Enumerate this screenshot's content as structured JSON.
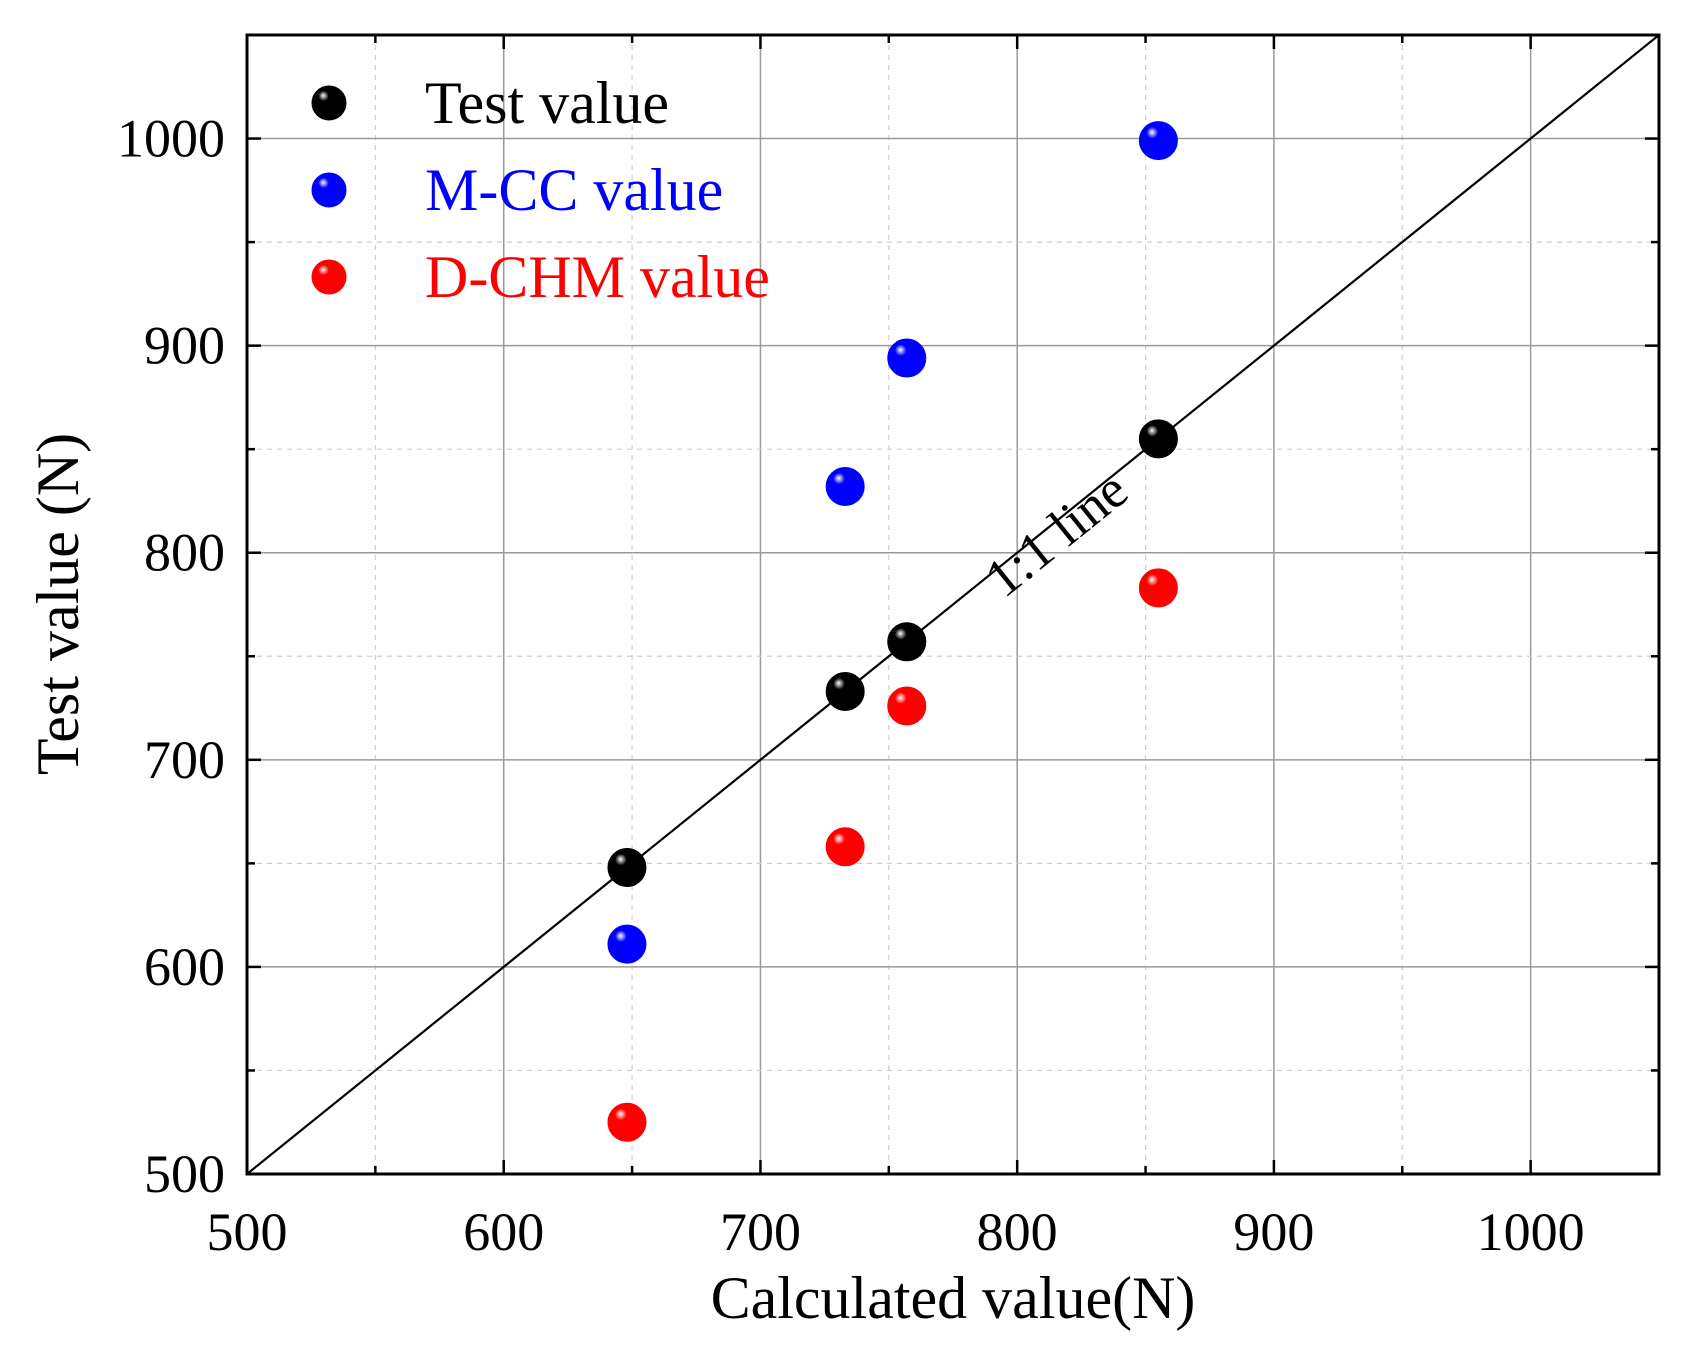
{
  "chart_data": {
    "type": "scatter",
    "xlabel": "Calculated value(N)",
    "ylabel": "Test value (N)",
    "xlim": [
      500,
      1050
    ],
    "ylim": [
      500,
      1050
    ],
    "x_ticks": [
      500,
      600,
      700,
      800,
      900,
      1000
    ],
    "y_ticks": [
      500,
      600,
      700,
      800,
      900,
      1000
    ],
    "x_tick_labels": [
      "500",
      "600",
      "700",
      "800",
      "900",
      "1000"
    ],
    "y_tick_labels": [
      "500",
      "600",
      "700",
      "800",
      "900",
      "1000"
    ],
    "grid": true,
    "legend_position": "top-left",
    "reference_line": {
      "label": "1:1 line",
      "slope": 1,
      "intercept": 0
    },
    "series": [
      {
        "name": "Test value",
        "color": "#000000",
        "points": [
          [
            648,
            648
          ],
          [
            733,
            733
          ],
          [
            757,
            757
          ],
          [
            855,
            855
          ]
        ]
      },
      {
        "name": "M-CC value",
        "color": "#0000ff",
        "points": [
          [
            648,
            611
          ],
          [
            733,
            832
          ],
          [
            757,
            894
          ],
          [
            855,
            999
          ]
        ]
      },
      {
        "name": "D-CHM value",
        "color": "#ff0000",
        "points": [
          [
            648,
            525
          ],
          [
            733,
            658
          ],
          [
            757,
            726
          ],
          [
            855,
            783
          ]
        ]
      }
    ]
  }
}
